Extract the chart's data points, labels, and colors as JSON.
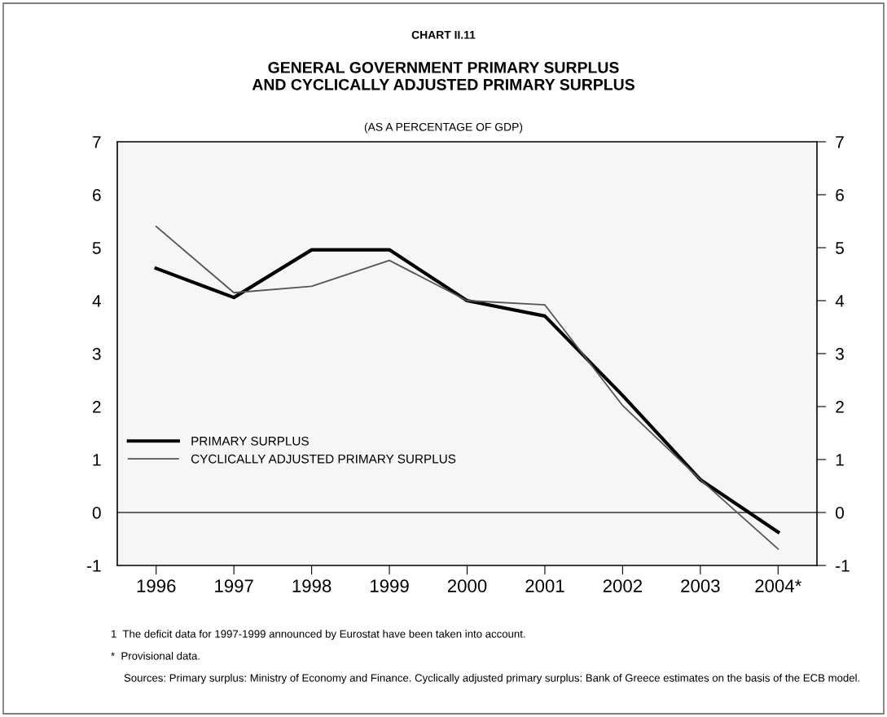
{
  "chart_data": {
    "type": "line",
    "title": "GENERAL GOVERNMENT PRIMARY SURPLUS\nAND CYCLICALLY ADJUSTED PRIMARY SURPLUS",
    "subtitle": "(AS A PERCENTAGE OF GDP)",
    "categories": [
      "1996",
      "1997",
      "1998",
      "1999",
      "2000",
      "2001",
      "2002",
      "2003",
      "2004*"
    ],
    "series": [
      {
        "name": "PRIMARY SURPLUS",
        "color": "#000000",
        "values": [
          4.61,
          4.06,
          4.96,
          4.96,
          4.0,
          3.71,
          2.21,
          0.62,
          -0.37
        ]
      },
      {
        "name": "CYCLICALLY ADJUSTED PRIMARY SURPLUS",
        "color": "#555555",
        "values": [
          5.4,
          4.15,
          4.27,
          4.76,
          4.0,
          3.92,
          2.02,
          0.62,
          -0.69
        ]
      }
    ],
    "ylim": [
      -1,
      7
    ],
    "yticks": [
      {
        "value": -1,
        "label": "-1"
      },
      0,
      1,
      2,
      3,
      4,
      5,
      6,
      7
    ],
    "y2lim": [
      -1,
      7
    ],
    "y2ticks": [
      {
        "value": -1,
        "label": "-1"
      },
      0,
      1,
      2,
      3,
      4,
      5,
      6,
      7
    ],
    "ref_lines": [
      {
        "axis": "y",
        "value": 0,
        "color": "#333333"
      }
    ],
    "legend": "left",
    "grid": false,
    "annotations": [
      "CHART II.11",
      "1  The deficit data for 1997-1999 announced by Eurostat have been taken into account.",
      "*  Provisional data.",
      "Sources: Primary surplus: Ministry of Economy and Finance. Cyclically adjusted primary surplus: Bank of Greece estimates on the basis of the ECB model."
    ]
  }
}
